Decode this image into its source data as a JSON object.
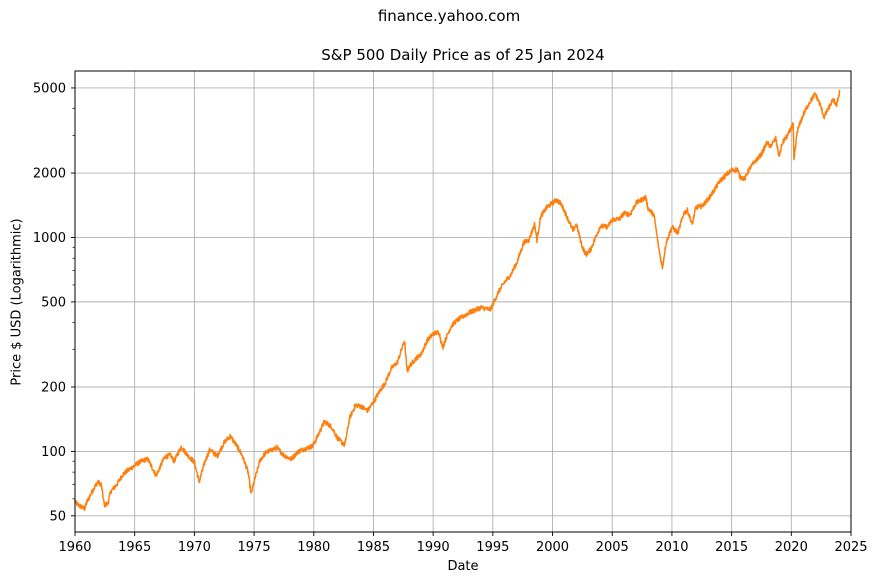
{
  "figure": {
    "suptitle": "finance.yahoo.com"
  },
  "chart_data": {
    "type": "line",
    "title": "S&P 500 Daily Price as of 25 Jan 2024",
    "xlabel": "Date",
    "ylabel": "Price $ USD (Logarithmic)",
    "xlim": [
      1960,
      2025
    ],
    "ylim": [
      42,
      6000
    ],
    "yscale": "log",
    "grid": true,
    "line_color": "#ff7f0e",
    "grid_color": "#b0b0b0",
    "x_ticks": [
      1960,
      1965,
      1970,
      1975,
      1980,
      1985,
      1990,
      1995,
      2000,
      2005,
      2010,
      2015,
      2020,
      2025
    ],
    "x_tick_labels": [
      "1960",
      "1965",
      "1970",
      "1975",
      "1980",
      "1985",
      "1990",
      "1995",
      "2000",
      "2005",
      "2010",
      "2015",
      "2020",
      "2025"
    ],
    "y_ticks": [
      50,
      100,
      200,
      500,
      1000,
      2000,
      5000
    ],
    "y_tick_labels": [
      "50",
      "100",
      "200",
      "500",
      "1000",
      "2000",
      "5000"
    ],
    "y_minor_ticks": [
      60,
      70,
      80,
      90,
      300,
      400,
      600,
      700,
      800,
      900,
      3000,
      4000
    ],
    "series": [
      {
        "x": [
          1960.0,
          1960.3,
          1960.8,
          1961.0,
          1961.5,
          1961.9,
          1962.2,
          1962.45,
          1962.75,
          1963.0,
          1963.5,
          1964.0,
          1964.5,
          1965.0,
          1965.4,
          1965.8,
          1966.1,
          1966.8,
          1967.5,
          1968.0,
          1968.3,
          1968.9,
          1969.5,
          1970.0,
          1970.4,
          1970.9,
          1971.3,
          1971.9,
          1972.5,
          1973.0,
          1973.6,
          1974.0,
          1974.5,
          1974.75,
          1975.0,
          1975.5,
          1976.0,
          1976.9,
          1977.5,
          1978.1,
          1978.7,
          1979.3,
          1979.9,
          1980.2,
          1980.9,
          1981.5,
          1982.0,
          1982.6,
          1983.0,
          1983.5,
          1984.0,
          1984.5,
          1985.0,
          1985.5,
          1986.0,
          1986.5,
          1987.0,
          1987.6,
          1987.82,
          1988.0,
          1988.5,
          1989.0,
          1989.5,
          1990.0,
          1990.5,
          1990.8,
          1991.0,
          1991.5,
          1992.0,
          1993.0,
          1994.0,
          1994.8,
          1995.5,
          1996.0,
          1996.5,
          1997.0,
          1997.6,
          1998.0,
          1998.5,
          1998.7,
          1999.0,
          1999.5,
          2000.0,
          2000.3,
          2000.7,
          2001.0,
          2001.7,
          2002.0,
          2002.5,
          2002.8,
          2003.2,
          2003.6,
          2004.0,
          2004.6,
          2005.0,
          2005.6,
          2006.0,
          2006.5,
          2007.0,
          2007.8,
          2008.0,
          2008.5,
          2008.9,
          2009.2,
          2009.5,
          2010.0,
          2010.5,
          2011.0,
          2011.3,
          2011.7,
          2012.0,
          2012.5,
          2013.0,
          2013.5,
          2014.0,
          2014.5,
          2015.0,
          2015.5,
          2015.7,
          2016.1,
          2016.5,
          2017.0,
          2017.5,
          2018.0,
          2018.2,
          2018.7,
          2018.97,
          2019.3,
          2019.7,
          2020.0,
          2020.15,
          2020.22,
          2020.5,
          2021.0,
          2021.5,
          2022.0,
          2022.4,
          2022.75,
          2023.0,
          2023.5,
          2023.8,
          2024.07
        ],
        "y": [
          58,
          56,
          54,
          58,
          66,
          72,
          70,
          56,
          57,
          65,
          70,
          78,
          82,
          86,
          89,
          91,
          92,
          77,
          94,
          96,
          90,
          105,
          95,
          89,
          72,
          90,
          102,
          95,
          110,
          118,
          105,
          96,
          80,
          63,
          72,
          91,
          99,
          104,
          96,
          92,
          100,
          103,
          106,
          114,
          138,
          130,
          115,
          107,
          143,
          165,
          162,
          155,
          170,
          190,
          210,
          245,
          260,
          330,
          235,
          250,
          270,
          285,
          330,
          355,
          360,
          305,
          330,
          385,
          410,
          445,
          470,
          460,
          560,
          620,
          670,
          760,
          950,
          970,
          1150,
          970,
          1250,
          1380,
          1450,
          1500,
          1440,
          1330,
          1080,
          1150,
          900,
          830,
          880,
          1000,
          1130,
          1120,
          1210,
          1220,
          1300,
          1280,
          1450,
          1540,
          1370,
          1270,
          890,
          720,
          940,
          1120,
          1050,
          1300,
          1340,
          1150,
          1380,
          1400,
          1500,
          1650,
          1830,
          1950,
          2060,
          2080,
          1920,
          1880,
          2100,
          2280,
          2450,
          2800,
          2650,
          2900,
          2400,
          2800,
          3000,
          3250,
          3380,
          2270,
          3150,
          3750,
          4250,
          4700,
          4200,
          3640,
          3900,
          4400,
          4150,
          4890
        ]
      }
    ]
  }
}
